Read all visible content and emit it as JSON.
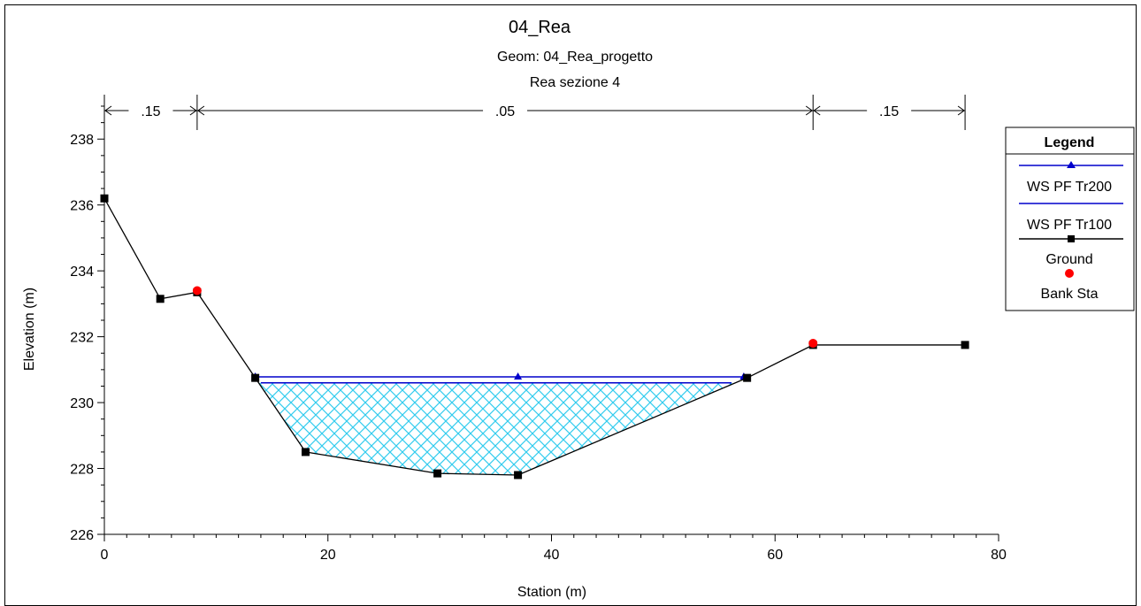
{
  "chart_data": {
    "type": "line",
    "title": "04_Rea",
    "subtitle": "Geom: 04_Rea_progetto",
    "section_label": "Rea sezione 4",
    "xlabel": "Station (m)",
    "ylabel": "Elevation (m)",
    "xlim": [
      0,
      80
    ],
    "ylim": [
      226,
      239
    ],
    "x_ticks": [
      0,
      20,
      40,
      60,
      80
    ],
    "y_ticks": [
      226,
      228,
      230,
      232,
      234,
      236,
      238
    ],
    "manning": [
      {
        "label": ".15",
        "from": 0,
        "to": 8.3
      },
      {
        "label": ".05",
        "from": 8.3,
        "to": 63.4
      },
      {
        "label": ".15",
        "from": 63.4,
        "to": 77
      }
    ],
    "legend": {
      "title": "Legend",
      "position": "right",
      "entries": [
        "WS PF Tr200",
        "WS PF Tr100",
        "Ground",
        "Bank Sta"
      ]
    },
    "series": [
      {
        "name": "Ground",
        "color": "#000000",
        "marker": "square",
        "points": [
          [
            0,
            236.2
          ],
          [
            5,
            233.15
          ],
          [
            8.3,
            233.35
          ],
          [
            13.5,
            230.75
          ],
          [
            18,
            228.5
          ],
          [
            29.8,
            227.85
          ],
          [
            37,
            227.8
          ],
          [
            57.5,
            230.75
          ],
          [
            63.4,
            231.75
          ],
          [
            77,
            231.75
          ]
        ]
      },
      {
        "name": "WS PF Tr200",
        "color": "#0000cc",
        "marker": "triangle",
        "elevation": 230.78,
        "points": [
          [
            13.5,
            230.78
          ],
          [
            37,
            230.78
          ],
          [
            57.2,
            230.78
          ]
        ]
      },
      {
        "name": "WS PF Tr100",
        "color": "#0000cc",
        "marker": "none",
        "elevation": 230.6,
        "points": [
          [
            14.0,
            230.6
          ],
          [
            56.1,
            230.6
          ]
        ]
      },
      {
        "name": "Bank Sta",
        "color": "#ff0000",
        "marker": "circle",
        "points": [
          [
            8.3,
            233.4
          ],
          [
            63.4,
            231.8
          ]
        ]
      }
    ]
  }
}
